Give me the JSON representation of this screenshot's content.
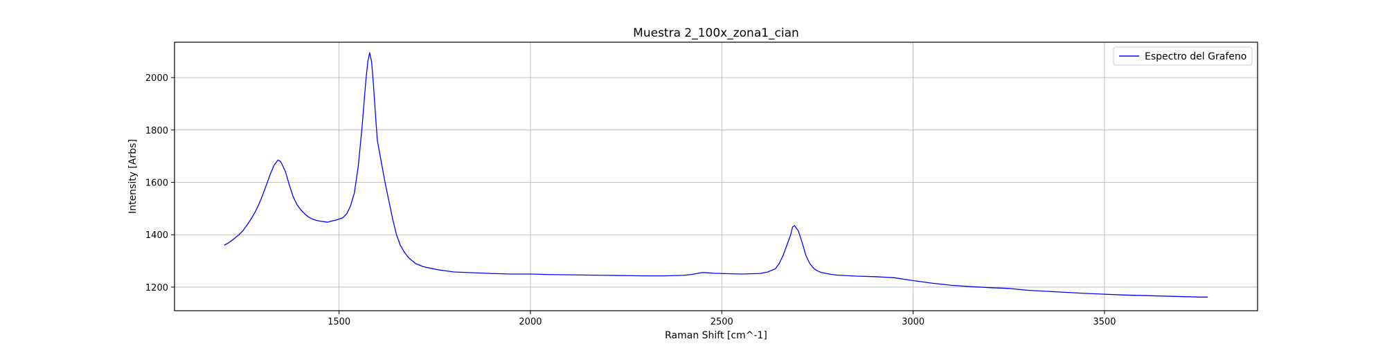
{
  "chart_data": {
    "type": "line",
    "title": "Muestra 2_100x_zona1_cian",
    "xlabel": "Raman Shift [cm^-1]",
    "ylabel": "Intensity [Arbs]",
    "xlim": [
      1070,
      3900
    ],
    "ylim": [
      1110,
      2135
    ],
    "x_ticks": [
      1500,
      2000,
      2500,
      3000,
      3500
    ],
    "y_ticks": [
      1200,
      1400,
      1600,
      1800,
      2000
    ],
    "grid": true,
    "legend": {
      "placement": "top-right"
    },
    "series": [
      {
        "name": "Espectro del Grafeno",
        "color": "#0000ff",
        "x": [
          1200,
          1210,
          1220,
          1230,
          1240,
          1250,
          1260,
          1270,
          1280,
          1290,
          1300,
          1310,
          1320,
          1330,
          1340,
          1345,
          1350,
          1360,
          1370,
          1380,
          1390,
          1400,
          1410,
          1420,
          1430,
          1440,
          1450,
          1460,
          1470,
          1480,
          1490,
          1500,
          1510,
          1520,
          1530,
          1540,
          1550,
          1560,
          1565,
          1570,
          1575,
          1580,
          1585,
          1590,
          1595,
          1600,
          1610,
          1620,
          1630,
          1640,
          1650,
          1660,
          1670,
          1680,
          1690,
          1700,
          1720,
          1740,
          1760,
          1780,
          1800,
          1850,
          1900,
          1950,
          2000,
          2050,
          2100,
          2150,
          2200,
          2250,
          2300,
          2350,
          2400,
          2420,
          2450,
          2480,
          2500,
          2550,
          2600,
          2620,
          2640,
          2650,
          2660,
          2670,
          2680,
          2685,
          2690,
          2700,
          2710,
          2720,
          2730,
          2740,
          2750,
          2760,
          2780,
          2800,
          2850,
          2900,
          2950,
          3000,
          3050,
          3100,
          3150,
          3200,
          3250,
          3300,
          3350,
          3400,
          3450,
          3500,
          3550,
          3600,
          3650,
          3700,
          3750,
          3770
        ],
        "values": [
          1360,
          1368,
          1378,
          1390,
          1402,
          1418,
          1438,
          1460,
          1485,
          1515,
          1550,
          1590,
          1630,
          1665,
          1685,
          1682,
          1672,
          1640,
          1590,
          1545,
          1515,
          1495,
          1480,
          1468,
          1460,
          1455,
          1452,
          1450,
          1448,
          1452,
          1455,
          1460,
          1465,
          1480,
          1510,
          1560,
          1660,
          1810,
          1900,
          1990,
          2060,
          2095,
          2060,
          1970,
          1860,
          1760,
          1680,
          1600,
          1530,
          1460,
          1400,
          1360,
          1335,
          1315,
          1302,
          1290,
          1278,
          1272,
          1266,
          1262,
          1258,
          1255,
          1252,
          1250,
          1250,
          1248,
          1247,
          1246,
          1245,
          1244,
          1243,
          1243,
          1245,
          1248,
          1256,
          1253,
          1252,
          1250,
          1252,
          1258,
          1270,
          1290,
          1320,
          1360,
          1400,
          1430,
          1435,
          1415,
          1370,
          1320,
          1290,
          1272,
          1262,
          1256,
          1250,
          1246,
          1242,
          1240,
          1236,
          1225,
          1215,
          1207,
          1202,
          1198,
          1195,
          1188,
          1184,
          1180,
          1176,
          1173,
          1170,
          1168,
          1166,
          1164,
          1162,
          1162
        ]
      }
    ]
  }
}
